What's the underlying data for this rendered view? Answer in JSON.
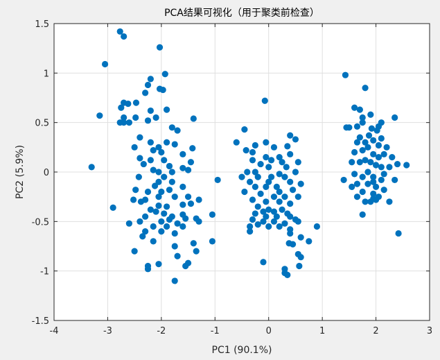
{
  "chart_data": {
    "type": "scatter",
    "title": "PCA结果可视化（用于聚类前检查）",
    "xlabel": "PC1 (90.1%)",
    "ylabel": "PC2 (5.9%)",
    "xlim": [
      -4,
      3
    ],
    "ylim": [
      -1.5,
      1.5
    ],
    "xticks": [
      "-4",
      "-3",
      "-2",
      "-1",
      "0",
      "1",
      "2",
      "3"
    ],
    "yticks": [
      "-1.5",
      "-1",
      "-0.5",
      "0",
      "0.5",
      "1",
      "1.5"
    ],
    "grid": true,
    "marker_color": "#0072BD",
    "series": [
      {
        "points": [
          [
            -2.77,
            1.42
          ],
          [
            -2.7,
            1.37
          ],
          [
            -3.05,
            1.09
          ],
          [
            -2.03,
            1.26
          ],
          [
            -2.2,
            0.94
          ],
          [
            -2.25,
            0.88
          ],
          [
            -1.93,
            0.99
          ],
          [
            -2.03,
            0.84
          ],
          [
            -1.97,
            0.83
          ],
          [
            -2.3,
            0.8
          ],
          [
            -2.47,
            0.7
          ],
          [
            -2.7,
            0.7
          ],
          [
            -2.62,
            0.69
          ],
          [
            -2.75,
            0.65
          ],
          [
            -2.2,
            0.62
          ],
          [
            -1.9,
            0.63
          ],
          [
            -3.15,
            0.57
          ],
          [
            -2.7,
            0.55
          ],
          [
            -2.1,
            0.55
          ],
          [
            -1.4,
            0.54
          ],
          [
            -2.48,
            0.55
          ],
          [
            -2.25,
            0.52
          ],
          [
            -2.7,
            0.5
          ],
          [
            -2.77,
            0.5
          ],
          [
            -2.6,
            0.5
          ],
          [
            -1.8,
            0.45
          ],
          [
            -1.7,
            0.42
          ],
          [
            -2.4,
            0.35
          ],
          [
            -2.2,
            0.3
          ],
          [
            -1.9,
            0.3
          ],
          [
            -1.75,
            0.28
          ],
          [
            -2.05,
            0.25
          ],
          [
            -2.5,
            0.25
          ],
          [
            -2.15,
            0.22
          ],
          [
            -2.0,
            0.2
          ],
          [
            -1.42,
            0.24
          ],
          [
            -1.6,
            0.18
          ],
          [
            -2.4,
            0.14
          ],
          [
            -2.2,
            0.12
          ],
          [
            -1.95,
            0.12
          ],
          [
            -1.45,
            0.1
          ],
          [
            -1.85,
            0.06
          ],
          [
            -1.6,
            0.04
          ],
          [
            -3.3,
            0.05
          ],
          [
            -2.33,
            0.08
          ],
          [
            -2.15,
            0.02
          ],
          [
            -2.05,
            0.0
          ],
          [
            -1.8,
            0.0
          ],
          [
            -1.5,
            0.02
          ],
          [
            -1.95,
            -0.05
          ],
          [
            -2.42,
            -0.05
          ],
          [
            -2.05,
            -0.1
          ],
          [
            -1.8,
            -0.1
          ],
          [
            -1.6,
            -0.15
          ],
          [
            -2.12,
            -0.14
          ],
          [
            -2.48,
            -0.18
          ],
          [
            -1.85,
            -0.18
          ],
          [
            -2.25,
            -0.2
          ],
          [
            -2.0,
            -0.2
          ],
          [
            -1.75,
            -0.25
          ],
          [
            -1.5,
            -0.25
          ],
          [
            -2.52,
            -0.28
          ],
          [
            -2.3,
            -0.28
          ],
          [
            -2.05,
            -0.25
          ],
          [
            -1.3,
            -0.28
          ],
          [
            -2.38,
            -0.3
          ],
          [
            -2.05,
            -0.34
          ],
          [
            -1.9,
            -0.35
          ],
          [
            -1.6,
            -0.33
          ],
          [
            -1.45,
            -0.32
          ],
          [
            -2.2,
            -0.38
          ],
          [
            -1.95,
            -0.42
          ],
          [
            -2.9,
            -0.36
          ],
          [
            -1.8,
            -0.45
          ],
          [
            -1.6,
            -0.43
          ],
          [
            -2.3,
            -0.45
          ],
          [
            -2.1,
            -0.4
          ],
          [
            -1.85,
            -0.48
          ],
          [
            -1.55,
            -0.47
          ],
          [
            -1.35,
            -0.47
          ],
          [
            -2.4,
            -0.5
          ],
          [
            -2.0,
            -0.5
          ],
          [
            -1.7,
            -0.52
          ],
          [
            -2.15,
            -0.55
          ],
          [
            -1.9,
            -0.55
          ],
          [
            -1.6,
            -0.55
          ],
          [
            -2.3,
            -0.6
          ],
          [
            -2.0,
            -0.6
          ],
          [
            -1.75,
            -0.62
          ],
          [
            -2.35,
            -0.65
          ],
          [
            -2.15,
            -0.7
          ],
          [
            -2.6,
            -0.52
          ],
          [
            -1.3,
            -0.5
          ],
          [
            -1.4,
            -0.72
          ],
          [
            -1.05,
            -0.7
          ],
          [
            -1.75,
            -0.75
          ],
          [
            -1.35,
            -0.8
          ],
          [
            -1.7,
            -0.85
          ],
          [
            -1.5,
            -0.92
          ],
          [
            -2.05,
            -0.93
          ],
          [
            -2.5,
            -0.8
          ],
          [
            -2.25,
            -0.95
          ],
          [
            -1.55,
            -0.95
          ],
          [
            -2.25,
            -0.98
          ],
          [
            -1.75,
            -1.1
          ]
        ]
      },
      {
        "points": [
          [
            -0.07,
            0.72
          ],
          [
            0.4,
            0.37
          ],
          [
            0.5,
            0.33
          ],
          [
            0.35,
            0.26
          ],
          [
            -0.45,
            0.43
          ],
          [
            -0.6,
            0.3
          ],
          [
            -0.25,
            0.27
          ],
          [
            -0.05,
            0.3
          ],
          [
            0.1,
            0.25
          ],
          [
            -0.42,
            0.22
          ],
          [
            -0.3,
            0.2
          ],
          [
            -0.05,
            0.15
          ],
          [
            0.2,
            0.15
          ],
          [
            0.4,
            0.18
          ],
          [
            -0.3,
            0.12
          ],
          [
            0.05,
            0.12
          ],
          [
            0.25,
            0.1
          ],
          [
            0.55,
            0.1
          ],
          [
            -0.15,
            0.08
          ],
          [
            0.0,
            0.05
          ],
          [
            0.33,
            0.05
          ],
          [
            0.5,
            0.0
          ],
          [
            -0.4,
            0.0
          ],
          [
            -0.25,
            0.0
          ],
          [
            0.2,
            -0.02
          ],
          [
            -0.95,
            -0.08
          ],
          [
            -0.5,
            -0.05
          ],
          [
            -0.2,
            -0.05
          ],
          [
            0.05,
            -0.05
          ],
          [
            0.3,
            -0.05
          ],
          [
            -0.35,
            -0.1
          ],
          [
            0.0,
            -0.1
          ],
          [
            0.15,
            -0.15
          ],
          [
            0.4,
            -0.1
          ],
          [
            0.6,
            -0.12
          ],
          [
            -0.25,
            -0.15
          ],
          [
            -0.05,
            -0.15
          ],
          [
            0.2,
            -0.2
          ],
          [
            0.45,
            -0.18
          ],
          [
            -0.45,
            -0.2
          ],
          [
            -0.15,
            -0.22
          ],
          [
            0.1,
            -0.25
          ],
          [
            0.3,
            -0.25
          ],
          [
            0.55,
            -0.25
          ],
          [
            -0.3,
            -0.28
          ],
          [
            -0.05,
            -0.3
          ],
          [
            0.2,
            -0.3
          ],
          [
            0.4,
            -0.32
          ],
          [
            -0.2,
            -0.35
          ],
          [
            0.0,
            -0.38
          ],
          [
            0.25,
            -0.38
          ],
          [
            -0.1,
            -0.4
          ],
          [
            0.1,
            -0.4
          ],
          [
            0.35,
            -0.42
          ],
          [
            -0.25,
            -0.42
          ],
          [
            -0.05,
            -0.45
          ],
          [
            0.15,
            -0.45
          ],
          [
            0.4,
            -0.45
          ],
          [
            0.5,
            -0.48
          ],
          [
            -0.3,
            -0.48
          ],
          [
            -1.05,
            -0.43
          ],
          [
            -0.1,
            -0.5
          ],
          [
            0.1,
            -0.5
          ],
          [
            0.3,
            -0.52
          ],
          [
            0.55,
            -0.5
          ],
          [
            -0.2,
            -0.53
          ],
          [
            0.0,
            -0.55
          ],
          [
            0.2,
            -0.55
          ],
          [
            -0.35,
            -0.55
          ],
          [
            -0.35,
            -0.6
          ],
          [
            0.4,
            -0.58
          ],
          [
            0.9,
            -0.55
          ],
          [
            0.4,
            -0.62
          ],
          [
            0.6,
            -0.66
          ],
          [
            0.38,
            -0.72
          ],
          [
            0.75,
            -0.7
          ],
          [
            0.45,
            -0.73
          ],
          [
            0.55,
            -0.83
          ],
          [
            0.6,
            -0.86
          ],
          [
            0.57,
            -0.95
          ],
          [
            0.3,
            -0.98
          ],
          [
            -0.1,
            -0.91
          ],
          [
            0.3,
            -1.02
          ],
          [
            0.35,
            -1.04
          ]
        ]
      },
      {
        "points": [
          [
            1.43,
            0.98
          ],
          [
            1.8,
            0.85
          ],
          [
            1.6,
            0.65
          ],
          [
            1.7,
            0.63
          ],
          [
            1.9,
            0.58
          ],
          [
            2.1,
            0.5
          ],
          [
            1.75,
            0.55
          ],
          [
            2.35,
            0.55
          ],
          [
            1.45,
            0.45
          ],
          [
            1.5,
            0.45
          ],
          [
            1.75,
            0.5
          ],
          [
            2.05,
            0.46
          ],
          [
            1.65,
            0.46
          ],
          [
            1.92,
            0.44
          ],
          [
            1.87,
            0.37
          ],
          [
            2.02,
            0.42
          ],
          [
            2.1,
            0.34
          ],
          [
            1.7,
            0.35
          ],
          [
            1.8,
            0.3
          ],
          [
            1.95,
            0.32
          ],
          [
            2.05,
            0.27
          ],
          [
            1.65,
            0.3
          ],
          [
            2.2,
            0.25
          ],
          [
            1.85,
            0.25
          ],
          [
            1.75,
            0.22
          ],
          [
            1.95,
            0.18
          ],
          [
            2.05,
            0.15
          ],
          [
            1.6,
            0.2
          ],
          [
            2.15,
            0.18
          ],
          [
            2.3,
            0.15
          ],
          [
            1.8,
            0.12
          ],
          [
            1.9,
            0.1
          ],
          [
            1.7,
            0.1
          ],
          [
            2.0,
            0.07
          ],
          [
            2.1,
            0.05
          ],
          [
            1.55,
            0.1
          ],
          [
            2.25,
            0.05
          ],
          [
            1.85,
            0.0
          ],
          [
            2.4,
            0.08
          ],
          [
            2.57,
            0.07
          ],
          [
            1.6,
            -0.02
          ],
          [
            1.75,
            -0.05
          ],
          [
            1.95,
            -0.05
          ],
          [
            2.15,
            -0.02
          ],
          [
            1.95,
            -0.1
          ],
          [
            2.35,
            -0.08
          ],
          [
            1.4,
            -0.08
          ],
          [
            1.65,
            -0.12
          ],
          [
            1.85,
            -0.12
          ],
          [
            1.55,
            -0.15
          ],
          [
            2.0,
            -0.15
          ],
          [
            2.15,
            -0.18
          ],
          [
            1.75,
            -0.2
          ],
          [
            1.95,
            -0.22
          ],
          [
            2.05,
            -0.25
          ],
          [
            1.65,
            -0.25
          ],
          [
            1.8,
            -0.3
          ],
          [
            1.9,
            -0.3
          ],
          [
            2.25,
            -0.3
          ],
          [
            2.0,
            -0.28
          ],
          [
            1.75,
            -0.43
          ],
          [
            2.42,
            -0.62
          ],
          [
            1.95,
            -0.27
          ],
          [
            2.1,
            -0.08
          ]
        ]
      }
    ]
  }
}
